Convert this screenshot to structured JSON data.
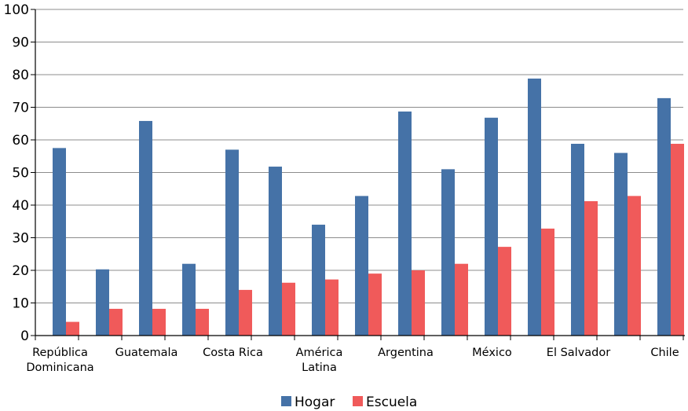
{
  "chart_data": {
    "type": "bar",
    "categories": [
      [
        "República",
        "Dominicana"
      ],
      [
        ""
      ],
      [
        "Guatemala"
      ],
      [
        ""
      ],
      [
        "Costa Rica"
      ],
      [
        ""
      ],
      [
        "América",
        "Latina"
      ],
      [
        ""
      ],
      [
        "Argentina"
      ],
      [
        ""
      ],
      [
        "México"
      ],
      [
        ""
      ],
      [
        "El Salvador"
      ],
      [
        ""
      ],
      [
        "Chile"
      ]
    ],
    "series": [
      {
        "name": "Hogar",
        "color": "#4572a7",
        "values": [
          57.5,
          20.3,
          65.8,
          22,
          57,
          51.8,
          34,
          42.8,
          68.7,
          51,
          66.8,
          78.8,
          58.8,
          56,
          72.8
        ]
      },
      {
        "name": "Escuela",
        "color": "#f05a5a",
        "values": [
          4.2,
          8.2,
          8.2,
          8.2,
          14,
          16.2,
          17.2,
          19,
          20,
          22,
          27.2,
          32.8,
          41.2,
          42.8,
          58.8
        ]
      }
    ],
    "yticks": [
      "0",
      "10",
      "20",
      "30",
      "40",
      "50",
      "60",
      "70",
      "80",
      "90",
      "100"
    ],
    "ylim": [
      0,
      100
    ],
    "grid": true,
    "legend_position": "bottom-center"
  }
}
